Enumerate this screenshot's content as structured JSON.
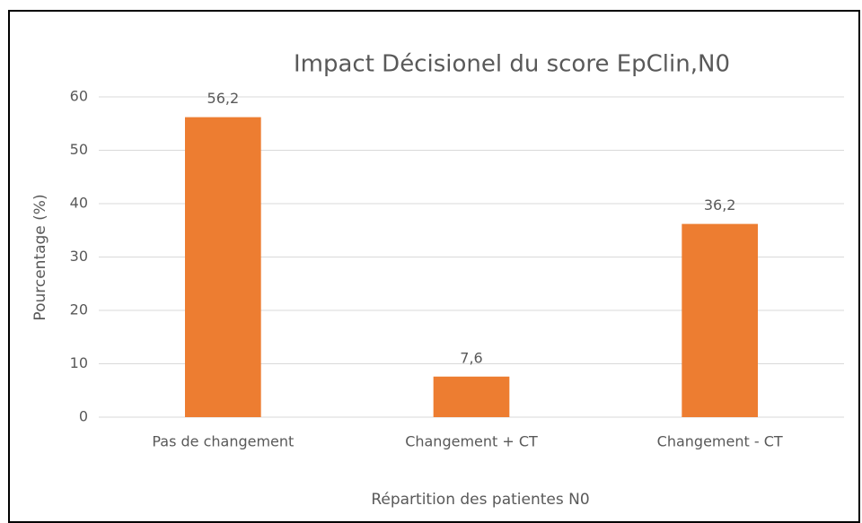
{
  "chart_data": {
    "type": "bar",
    "title": "Impact Décisionel du score EpClin,N0",
    "categories": [
      "Pas de changement",
      "Changement + CT",
      "Changement - CT"
    ],
    "values": [
      56.2,
      7.6,
      36.2
    ],
    "value_labels": [
      "56,2",
      "7,6",
      "36,2"
    ],
    "color": "#ed7d31",
    "xlabel": "Répartition des patientes N0",
    "ylabel": "Pourcentage (%)",
    "ylim": [
      0,
      60
    ],
    "yticks": [
      0,
      10,
      20,
      30,
      40,
      50,
      60
    ],
    "grid": true
  }
}
